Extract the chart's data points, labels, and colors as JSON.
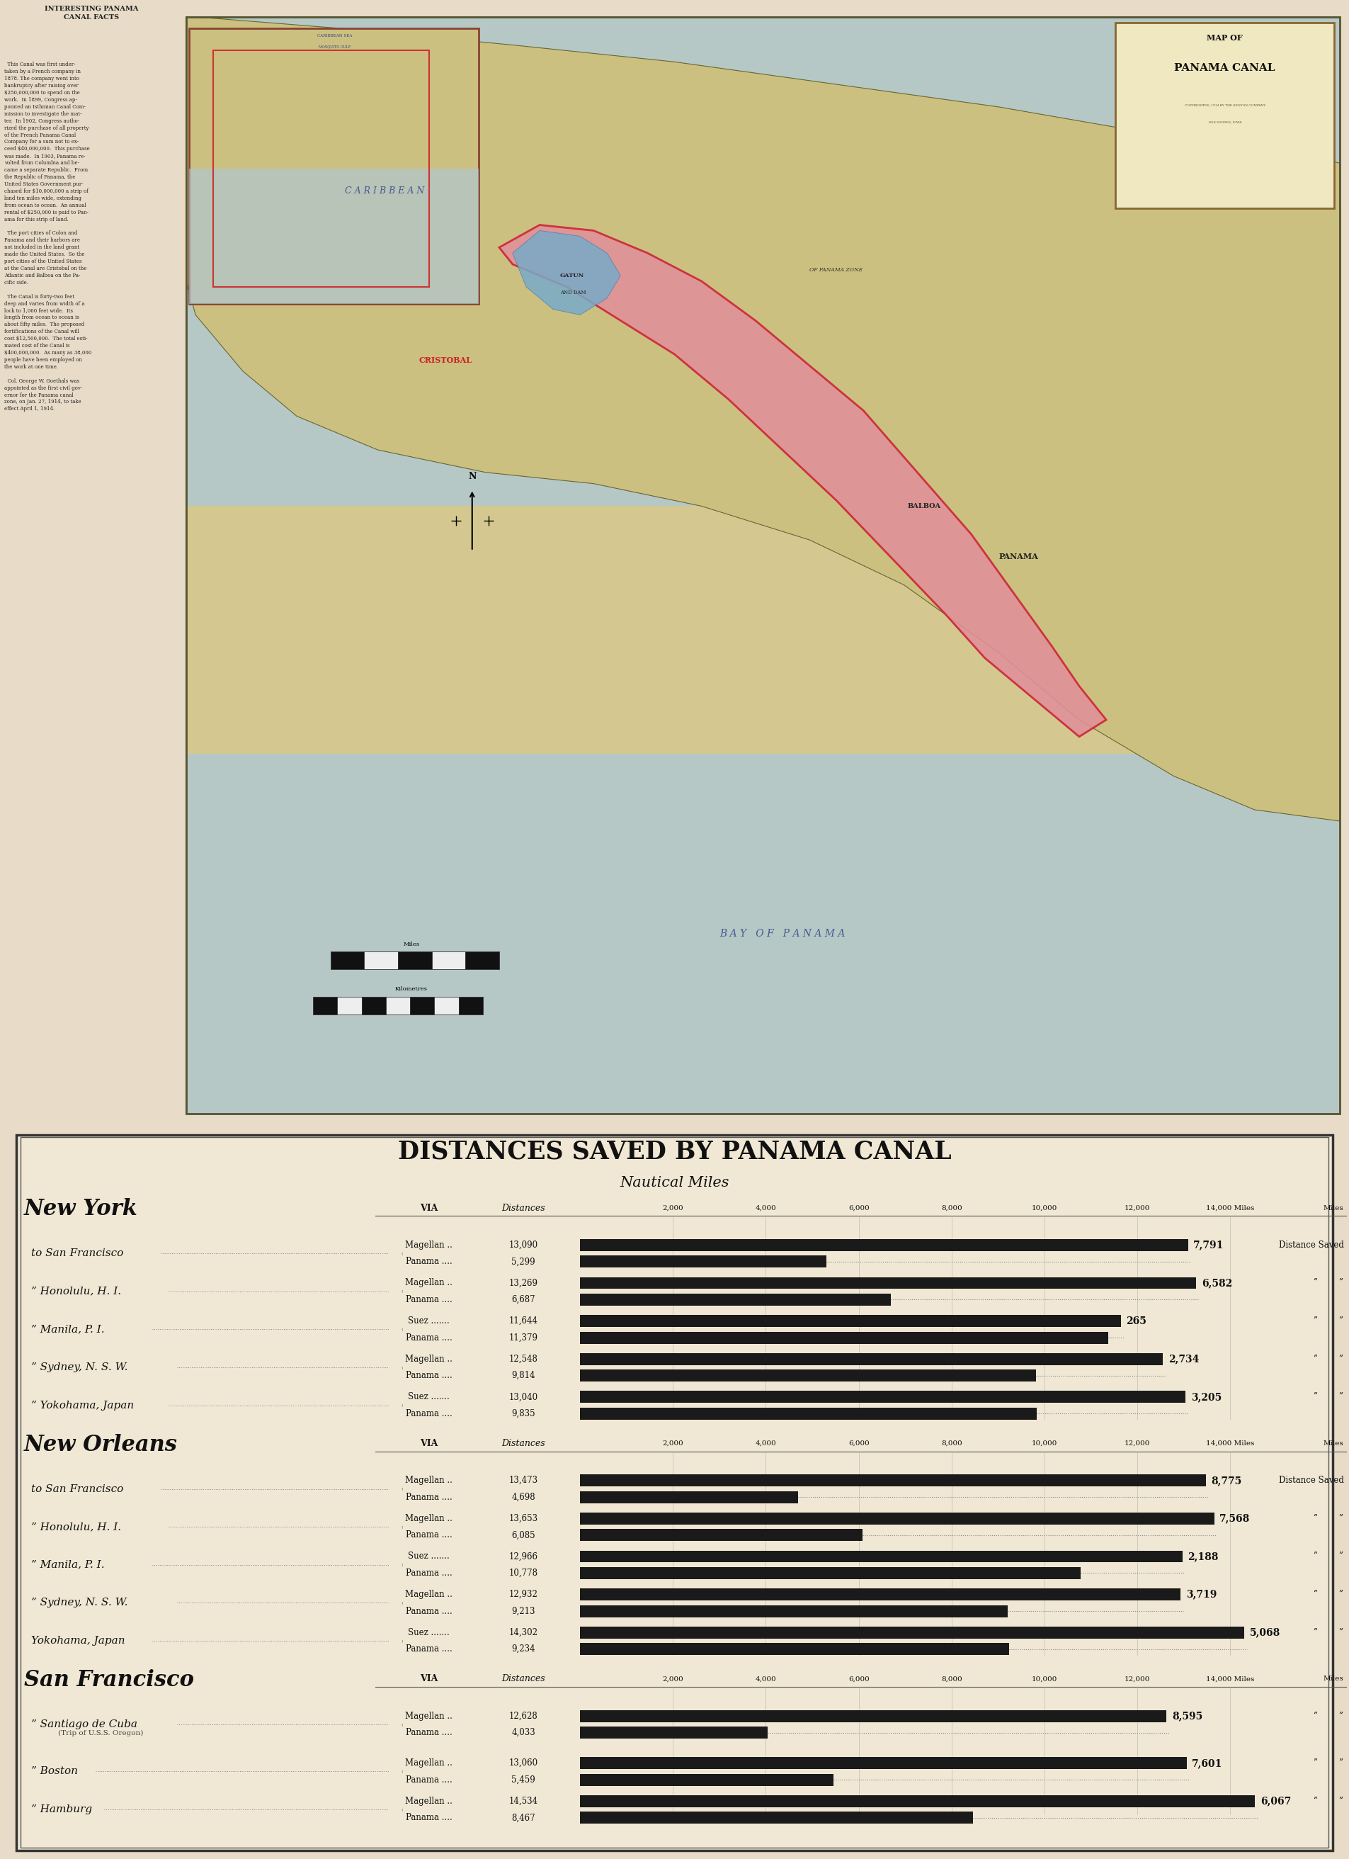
{
  "page_bg": "#e8dcc8",
  "map_bg": "#d4c99a",
  "page_width": 19.05,
  "page_height": 26.24,
  "title_distances": "DISTANCES SAVED BY PANAMA CANAL",
  "subtitle_distances": "Nautical Miles",
  "groups": [
    {
      "origin": "New York",
      "destinations": [
        {
          "dest": "to San Francisco",
          "dest_dots": true,
          "brace": true,
          "rows": [
            {
              "via": "Magellan ..",
              "dist_str": "13,090",
              "dist": 13090
            },
            {
              "via": "Panama ....",
              "dist_str": "5,299",
              "dist": 5299
            }
          ],
          "saved": "7,791",
          "saved_label": "Distance Saved"
        },
        {
          "dest": "” Honolulu, H. I.",
          "dest_dots": true,
          "brace": true,
          "rows": [
            {
              "via": "Magellan ..",
              "dist_str": "13,269",
              "dist": 13269
            },
            {
              "via": "Panama ....",
              "dist_str": "6,687",
              "dist": 6687
            }
          ],
          "saved": "6,582",
          "saved_label": "”      ”"
        },
        {
          "dest": "” Manila, P. I.",
          "dest_dots": true,
          "brace": true,
          "rows": [
            {
              "via": "Suez .......",
              "dist_str": "11,644",
              "dist": 11644
            },
            {
              "via": "Panama ....",
              "dist_str": "11,379",
              "dist": 11379
            }
          ],
          "saved": "265",
          "saved_label": "”      ”"
        },
        {
          "dest": "” Sydney, N. S. W.",
          "dest_dots": false,
          "brace": true,
          "rows": [
            {
              "via": "Magellan ..",
              "dist_str": "12,548",
              "dist": 12548
            },
            {
              "via": "Panama ....",
              "dist_str": "9,814",
              "dist": 9814
            }
          ],
          "saved": "2,734",
          "saved_label": "”      ”"
        },
        {
          "dest": "” Yokohama, Japan",
          "dest_dots": false,
          "brace": true,
          "rows": [
            {
              "via": "Suez .......",
              "dist_str": "13,040",
              "dist": 13040
            },
            {
              "via": "Panama ....",
              "dist_str": "9,835",
              "dist": 9835
            }
          ],
          "saved": "3,205",
          "saved_label": "”      ”"
        }
      ]
    },
    {
      "origin": "New Orleans",
      "destinations": [
        {
          "dest": "to San Francisco",
          "dest_dots": true,
          "brace": true,
          "rows": [
            {
              "via": "Magellan ..",
              "dist_str": "13,473",
              "dist": 13473
            },
            {
              "via": "Panama ....",
              "dist_str": "4,698",
              "dist": 4698
            }
          ],
          "saved": "8,775",
          "saved_label": "Distance Saved"
        },
        {
          "dest": "” Honolulu, H. I.",
          "dest_dots": true,
          "brace": true,
          "rows": [
            {
              "via": "Magellan ..",
              "dist_str": "13,653",
              "dist": 13653
            },
            {
              "via": "Panama ....",
              "dist_str": "6,085",
              "dist": 6085
            }
          ],
          "saved": "7,568",
          "saved_label": "”      ”"
        },
        {
          "dest": "” Manila, P. I.",
          "dest_dots": true,
          "brace": true,
          "rows": [
            {
              "via": "Suez .......",
              "dist_str": "12,966",
              "dist": 12966
            },
            {
              "via": "Panama ....",
              "dist_str": "10,778",
              "dist": 10778
            }
          ],
          "saved": "2,188",
          "saved_label": "”      ”"
        },
        {
          "dest": "” Sydney, N. S. W.",
          "dest_dots": false,
          "brace": true,
          "rows": [
            {
              "via": "Magellan ..",
              "dist_str": "12,932",
              "dist": 12932
            },
            {
              "via": "Panama ....",
              "dist_str": "9,213",
              "dist": 9213
            }
          ],
          "saved": "3,719",
          "saved_label": "”      ”"
        },
        {
          "dest": "Yokohama, Japan",
          "dest_dots": false,
          "brace": true,
          "rows": [
            {
              "via": "Suez .......",
              "dist_str": "14,302",
              "dist": 14302
            },
            {
              "via": "Panama ....",
              "dist_str": "9,234",
              "dist": 9234
            }
          ],
          "saved": "5,068",
          "saved_label": "”      ”"
        }
      ]
    },
    {
      "origin": "San Francisco",
      "destinations": [
        {
          "dest": "” Santiago de Cuba",
          "dest2": "(Trip of U.S.S. Oregon)",
          "brace": true,
          "rows": [
            {
              "via": "Magellan ..",
              "dist_str": "12,628",
              "dist": 12628
            },
            {
              "via": "Panama ....",
              "dist_str": "4,033",
              "dist": 4033
            }
          ],
          "saved": "8,595",
          "saved_label": "”      ”"
        },
        {
          "dest": "” Boston",
          "dest_dots": true,
          "brace": true,
          "rows": [
            {
              "via": "Magellan ..",
              "dist_str": "13,060",
              "dist": 13060
            },
            {
              "via": "Panama ....",
              "dist_str": "5,459",
              "dist": 5459
            }
          ],
          "saved": "7,601",
          "saved_label": "”      ”"
        },
        {
          "dest": "” Hamburg",
          "dest_dots": true,
          "brace": true,
          "rows": [
            {
              "via": "Magellan ..",
              "dist_str": "14,534",
              "dist": 14534
            },
            {
              "via": "Panama ....",
              "dist_str": "8,467",
              "dist": 8467
            }
          ],
          "saved": "6,067",
          "saved_label": "”      ”"
        }
      ]
    }
  ],
  "x_max": 14000,
  "x_ticks": [
    2000,
    4000,
    6000,
    8000,
    10000,
    12000,
    14000
  ],
  "x_tick_labels": [
    "2,000",
    "4,000",
    "6,000",
    "8,000",
    "10,000",
    "12,000",
    "14,000 Miles"
  ]
}
